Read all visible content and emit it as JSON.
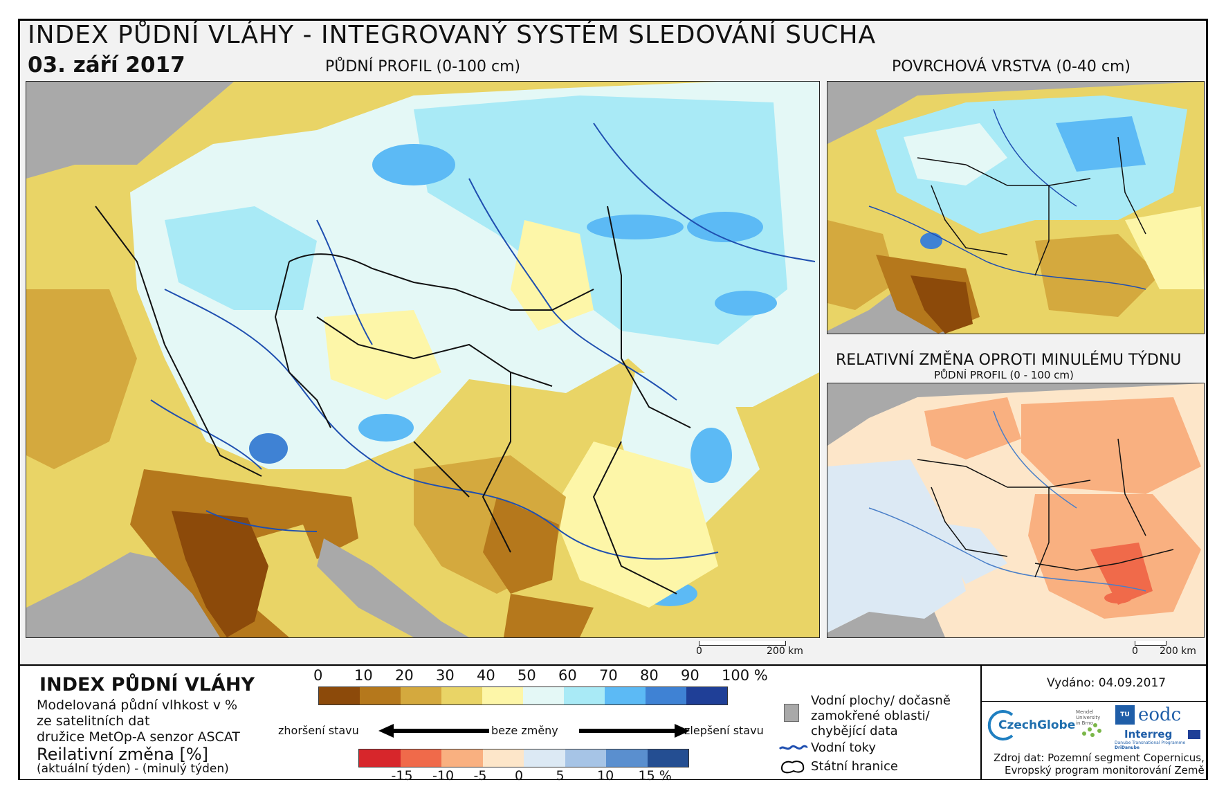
{
  "header": {
    "title": "INDEX PŮDNÍ VLÁHY - INTEGROVANÝ SYSTÉM SLEDOVÁNÍ SUCHA",
    "date": "03. září 2017"
  },
  "maps": {
    "main": {
      "caption": "PŮDNÍ PROFIL (0-100 cm)",
      "scale_zero": "0",
      "scale_label": "200 km"
    },
    "surface": {
      "caption": "POVRCHOVÁ VRSTVA (0-40 cm)"
    },
    "change": {
      "caption": "RELATIVNÍ ZMĚNA OPROTI MINULÉMU TÝDNU",
      "subcaption": "PŮDNÍ PROFIL (0 - 100 cm)",
      "scale_zero": "0",
      "scale_label": "200 km"
    }
  },
  "legend": {
    "title": "INDEX PŮDNÍ VLÁHY",
    "desc_1": "Modelovaná půdní vlhkost v %",
    "desc_2": "ze satelitních dat",
    "desc_3": "družice MetOp-A senzor ASCAT",
    "change_title": "Reilativní změna [%]",
    "change_desc": "(aktuální týden) - (minulý týden)",
    "moisture_ticks": [
      "0",
      "10",
      "20",
      "30",
      "40",
      "50",
      "60",
      "70",
      "80",
      "90",
      "100 %"
    ],
    "moisture_colors": [
      "#8c4a0a",
      "#b5781c",
      "#d4a93e",
      "#e9d466",
      "#fdf6a8",
      "#e4f8f6",
      "#a9eaf6",
      "#5cbaf5",
      "#3f82d4",
      "#1f3f97"
    ],
    "worse_label": "zhoršení stavu",
    "neutral_label": "beze změny",
    "better_label": "zlepšení stavu",
    "change_ticks": [
      "-15",
      "-10",
      "-5",
      "0",
      "5",
      "10",
      "15 %"
    ],
    "change_colors": [
      "#d7262b",
      "#f06a4a",
      "#f9b080",
      "#fde6c9",
      "#dce9f4",
      "#a6c4e6",
      "#5a8fcf",
      "#244e92"
    ],
    "water_label_1": "Vodní plochy/ dočasně",
    "water_label_2": "zamokřené oblasti/",
    "water_label_3": "chybějící data",
    "rivers_label": "Vodní toky",
    "borders_label": "Státní hranice"
  },
  "info": {
    "issued": "Vydáno: 04.09.2017",
    "source_1": "Zdroj dat: Pozemní segment Copernicus,",
    "source_2": "Evropský program monitorování Země",
    "logo_czechglobe": "CzechGlobe",
    "logo_mendel": "Mendel University in Brno",
    "logo_tu": "TU WIEN",
    "logo_eodc": "eodc",
    "logo_interreg": "Interreg",
    "logo_interreg_sub": "Danube Transnational Programme",
    "logo_dridanube": "DriDanube"
  }
}
